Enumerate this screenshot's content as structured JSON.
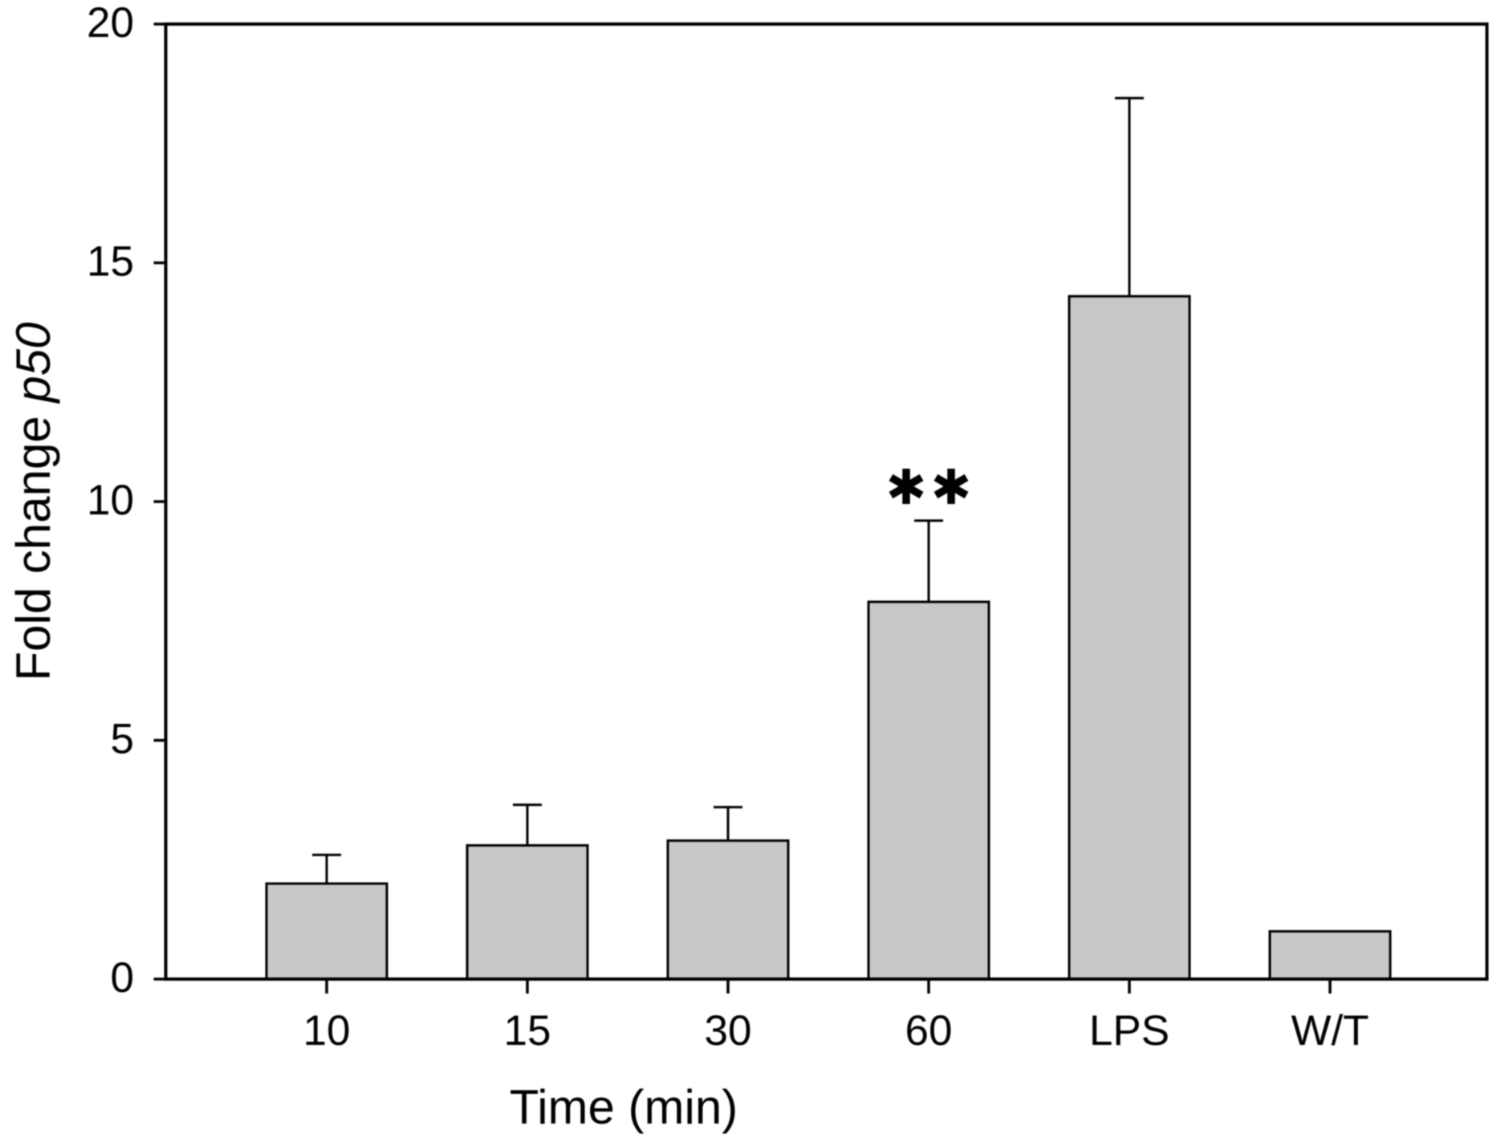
{
  "figure": {
    "background": "#ffffff",
    "bar_fill": "#c8c8c8",
    "line_color": "#000000",
    "text_color": "#000000"
  },
  "chart_data": {
    "type": "bar",
    "categories": [
      "10",
      "15",
      "30",
      "60",
      "LPS",
      "W/T"
    ],
    "values": [
      2.0,
      2.8,
      2.9,
      7.9,
      14.3,
      1.0
    ],
    "errors_plus": [
      0.6,
      0.85,
      0.7,
      1.7,
      4.15,
      0
    ],
    "title": "",
    "xlabel": "Time (min)",
    "ylabel": "Fold change p50",
    "ylabel_regular": "Fold change ",
    "ylabel_italic": "p50",
    "ylim": [
      0,
      20
    ],
    "yticks": [
      0,
      5,
      10,
      15,
      20
    ],
    "grid": false,
    "legend_position": null,
    "annotations": [
      {
        "text": "**",
        "category": "60"
      }
    ]
  }
}
